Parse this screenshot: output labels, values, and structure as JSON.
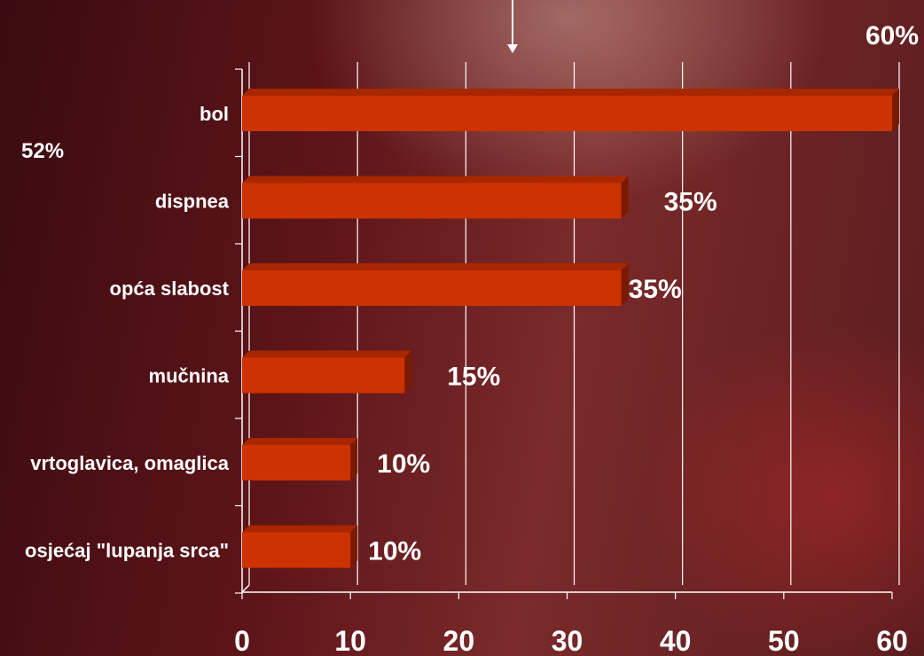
{
  "chart_data": {
    "type": "bar",
    "orientation": "horizontal",
    "categories": [
      "bol",
      "dispnea",
      "opća slabost",
      "mučnina",
      "vrtoglavica, omaglica",
      "osjećaj \"lupanja srca\""
    ],
    "values": [
      60,
      35,
      35,
      15,
      10,
      10
    ],
    "value_labels": [
      "60%",
      "35%",
      "35%",
      "15%",
      "10%",
      "10%"
    ],
    "xlim": [
      0,
      60
    ],
    "x_ticks": [
      "0",
      "10",
      "20",
      "30",
      "40",
      "50",
      "60"
    ],
    "grid": true,
    "bar_color": "#cc3300",
    "annotations": {
      "side_label": "52%",
      "arrow": "down-arrow"
    }
  }
}
